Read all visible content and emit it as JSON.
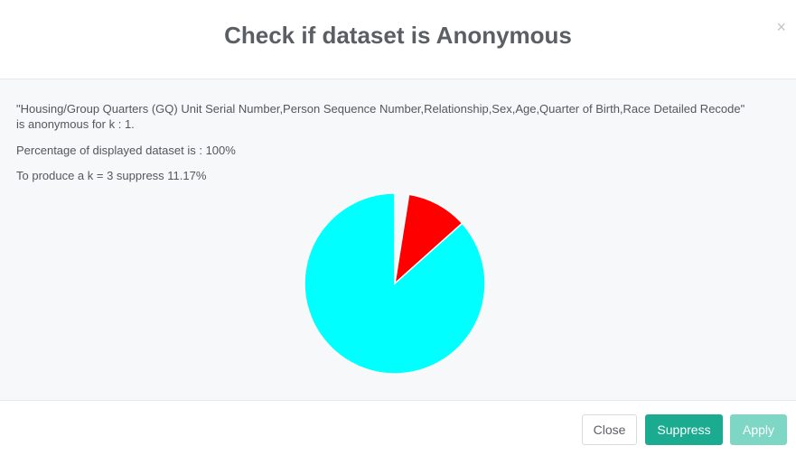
{
  "dialog": {
    "title": "Check if dataset is Anonymous",
    "close_icon": "×",
    "anonymity_line1": "\"Housing/Group Quarters (GQ) Unit Serial Number,Person Sequence Number,Relationship,Sex,Age,Quarter of Birth,Race Detailed Recode\"",
    "anonymity_line2": "is anonymous for k : 1.",
    "percentage_text": "Percentage of displayed dataset is : 100%",
    "suppress_text": "To produce a k = 3 suppress 11.17%"
  },
  "buttons": {
    "close": "Close",
    "suppress": "Suppress",
    "apply": "Apply"
  },
  "colors": {
    "kept": "#00ffff",
    "suppressed": "#ff0000",
    "suppress_button": "#1bab90",
    "apply_button": "#7ed6c4"
  },
  "chart_data": {
    "type": "pie",
    "values": [
      11.17,
      88.83
    ],
    "colors": [
      "#ff0000",
      "#00ffff"
    ],
    "start_gap_degrees": 9
  }
}
